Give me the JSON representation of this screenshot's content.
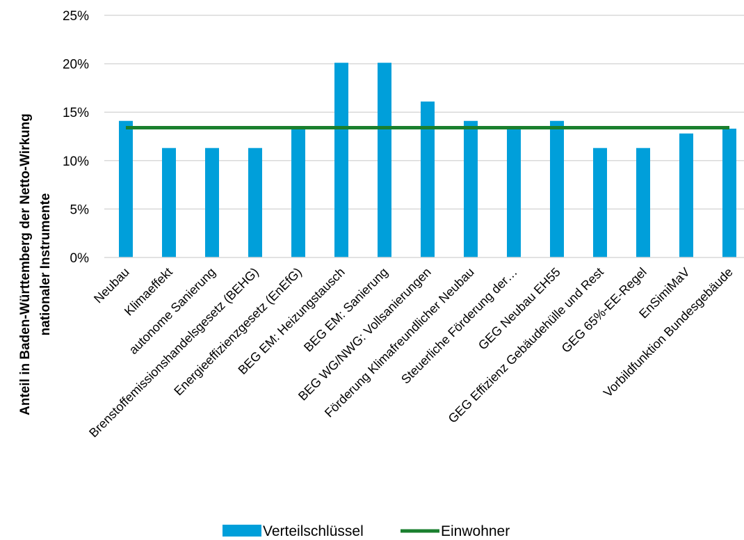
{
  "chart_data": {
    "type": "bar",
    "ylabel_lines": [
      "Anteil in Baden-Württemberg der Netto-Wirkung",
      "nationaler Instrumente"
    ],
    "xlabel": "",
    "ylim": [
      0,
      25
    ],
    "yticks": [
      "0%",
      "5%",
      "10%",
      "15%",
      "20%",
      "25%"
    ],
    "grid": true,
    "legend_position": "bottom",
    "categories": [
      "Neubau",
      "Klimaeffekt",
      "autonome Sanierung",
      "Brenstoffemissionshandelsgesetz (BEHG)",
      "Energieeffizienzgesetz (EnEfG)",
      "BEG EM: Heizungstausch",
      "BEG EM: Sanierung",
      "BEG WG/NWG: Vollsanierungen",
      "Förderung Klimafreundlicher Neubau",
      "Steuerliche Förderung der…",
      "GEG Neubau EH55",
      "GEG Effizienz Gebäudehülle und Rest",
      "GEG 65%-EE-Regel",
      "EnSimiMaV",
      "Vorbildfunktion Bundesgebäude"
    ],
    "series": [
      {
        "name": "Verteilschlüssel",
        "kind": "bar",
        "color": "#009FDA",
        "values": [
          14.1,
          11.3,
          11.3,
          11.3,
          13.3,
          20.1,
          20.1,
          16.1,
          14.1,
          13.3,
          14.1,
          11.3,
          11.3,
          12.8,
          13.3
        ]
      },
      {
        "name": "Einwohner",
        "kind": "line",
        "color": "#1A7F2E",
        "values": [
          13.4,
          13.4,
          13.4,
          13.4,
          13.4,
          13.4,
          13.4,
          13.4,
          13.4,
          13.4,
          13.4,
          13.4,
          13.4,
          13.4,
          13.4
        ]
      }
    ]
  }
}
